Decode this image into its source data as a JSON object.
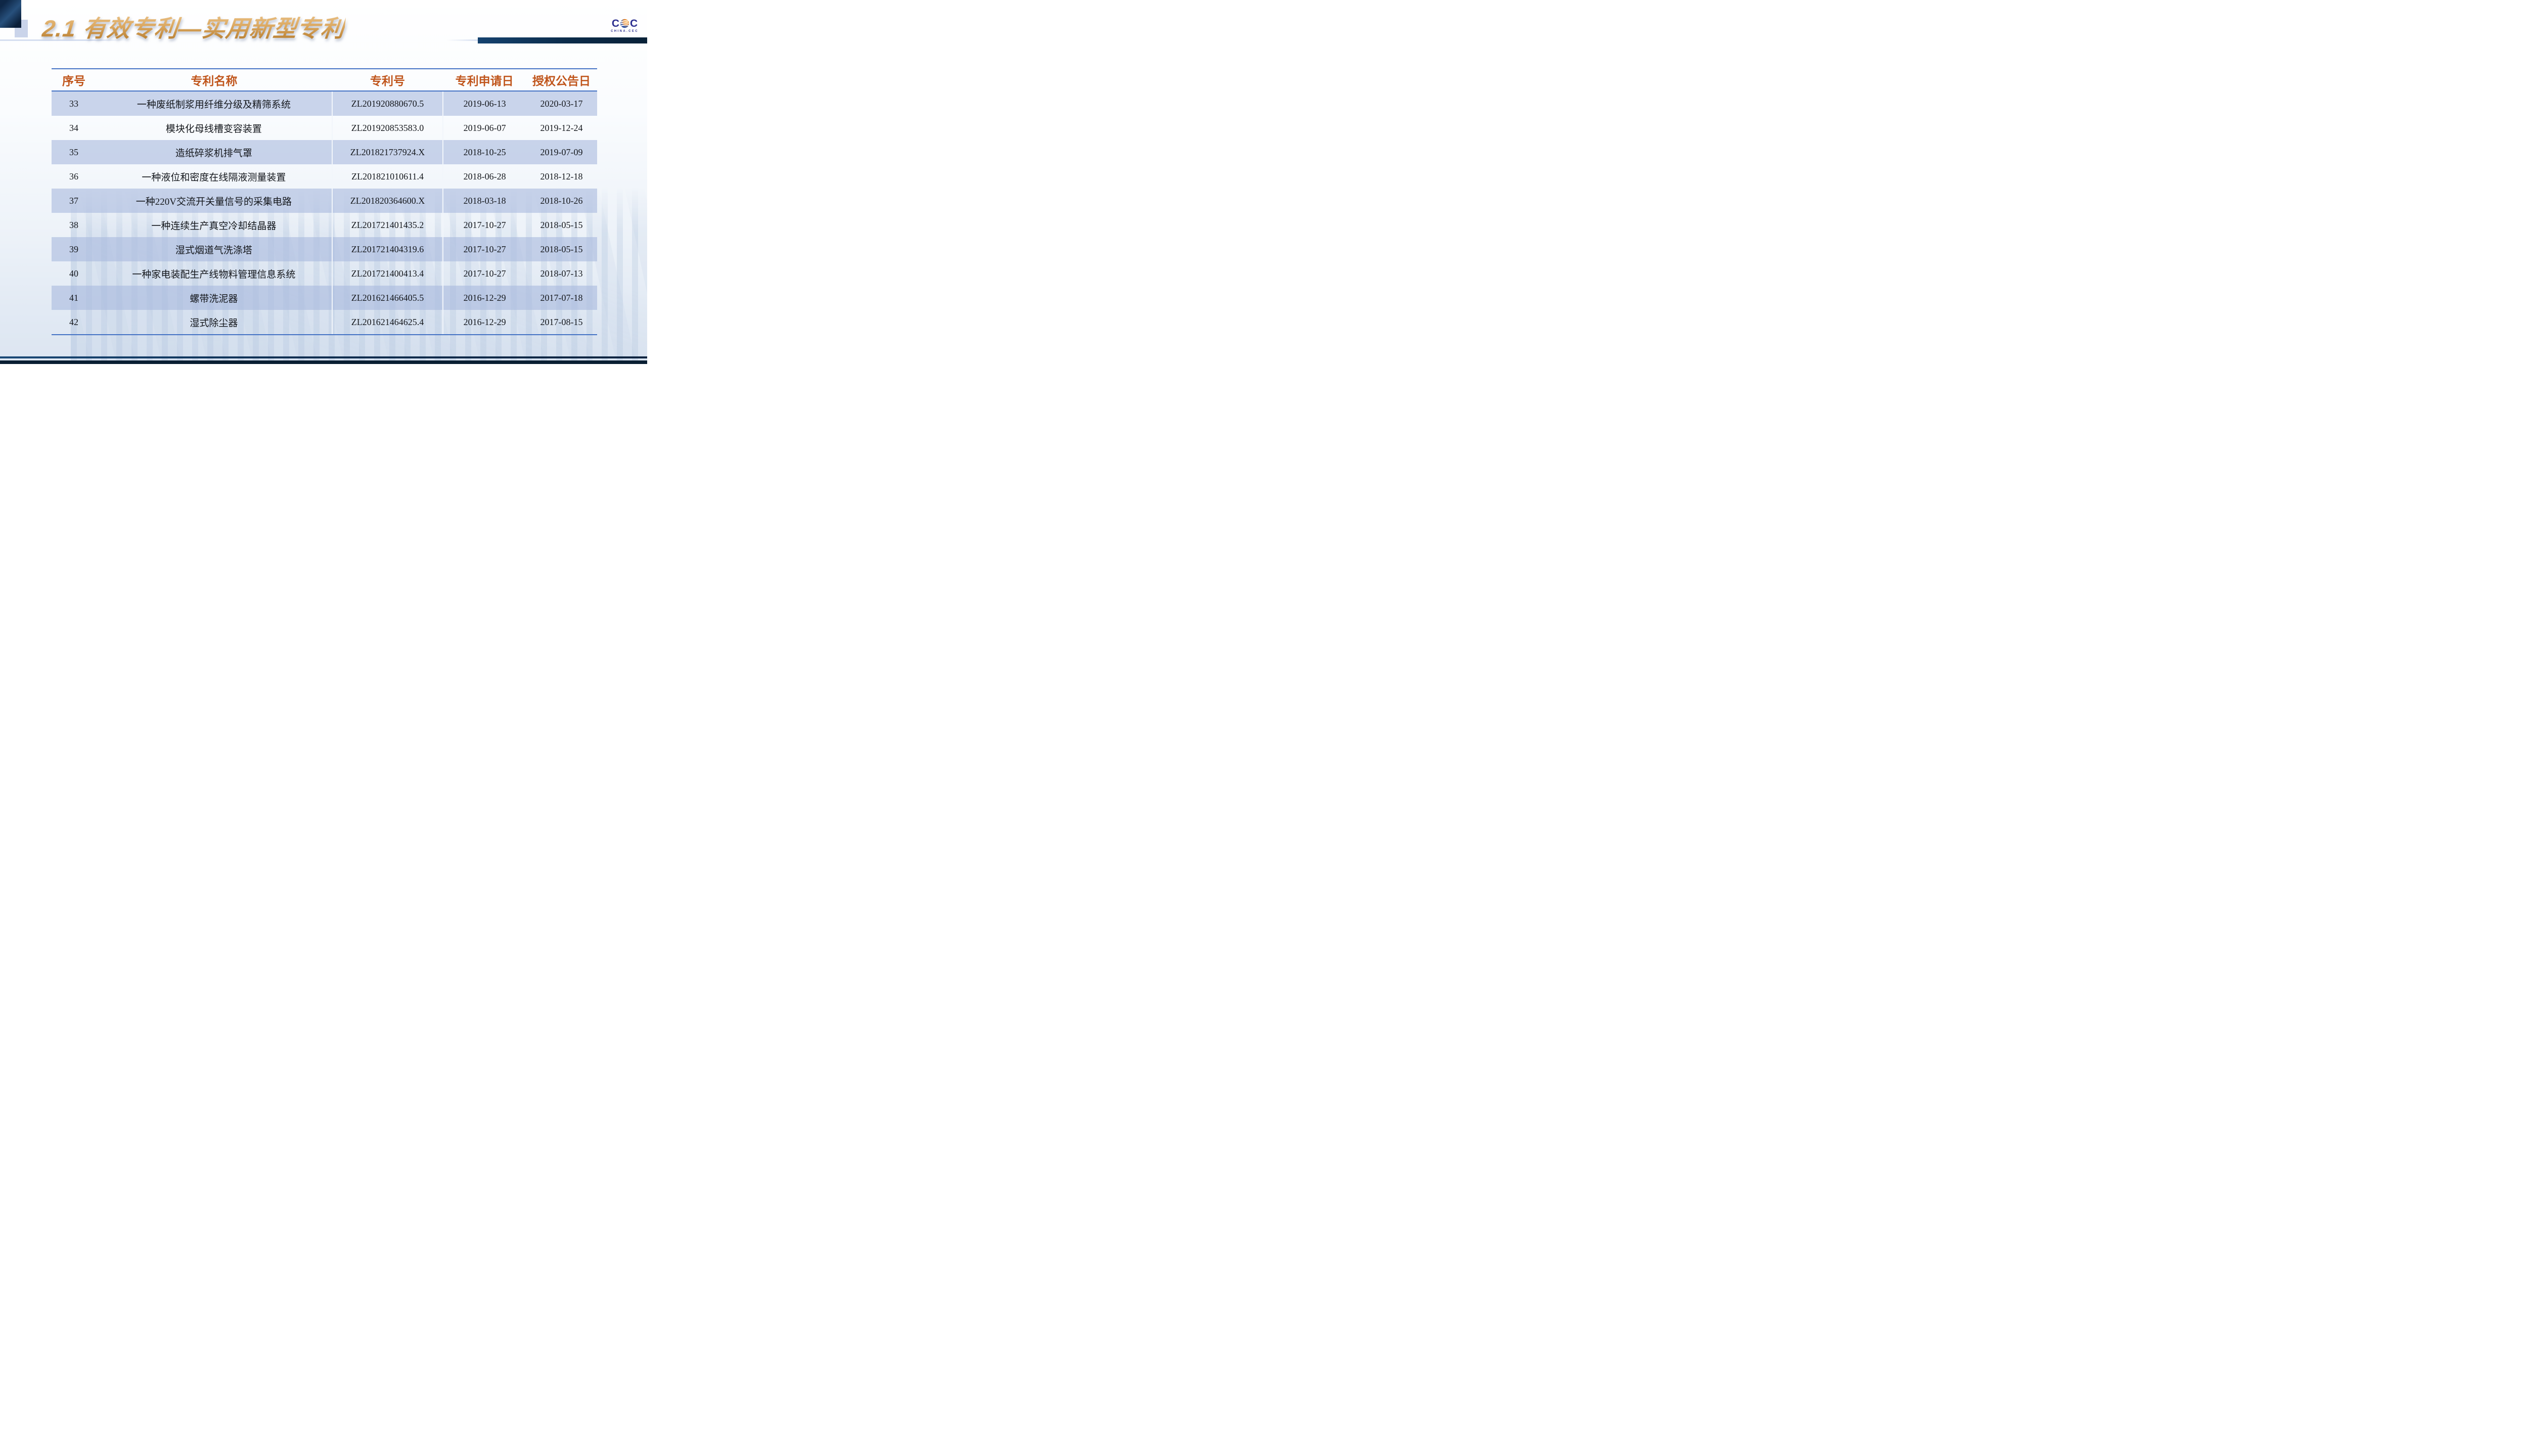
{
  "slide": {
    "title": "2.1 有效专利—实用新型专利",
    "logo": {
      "c_left": "C",
      "c_right": "C",
      "subtext": "CHINA.CEC"
    },
    "colors": {
      "accent_orange": "#C0551B",
      "title_gold": "#C79048",
      "table_border_blue": "#4472C4",
      "row_stripe": "#CBD5EA",
      "footer_navy": "#0A1F33",
      "logo_navy": "#2B2E8F",
      "logo_globe_orange": "#E87F1F"
    },
    "table": {
      "headers": [
        "序号",
        "专利名称",
        "专利号",
        "专利申请日",
        "授权公告日"
      ],
      "rows": [
        {
          "no": "33",
          "name": "一种废纸制浆用纤维分级及精筛系统",
          "patent_no": "ZL201920880670.5",
          "applied": "2019-06-13",
          "granted": "2020-03-17"
        },
        {
          "no": "34",
          "name": "模块化母线槽变容装置",
          "patent_no": "ZL201920853583.0",
          "applied": "2019-06-07",
          "granted": "2019-12-24"
        },
        {
          "no": "35",
          "name": "造纸碎浆机排气罩",
          "patent_no": "ZL201821737924.X",
          "applied": "2018-10-25",
          "granted": "2019-07-09"
        },
        {
          "no": "36",
          "name": "一种液位和密度在线隔液测量装置",
          "patent_no": "ZL201821010611.4",
          "applied": "2018-06-28",
          "granted": "2018-12-18"
        },
        {
          "no": "37",
          "name": "一种220V交流开关量信号的采集电路",
          "patent_no": "ZL201820364600.X",
          "applied": "2018-03-18",
          "granted": "2018-10-26"
        },
        {
          "no": "38",
          "name": "一种连续生产真空冷却结晶器",
          "patent_no": "ZL201721401435.2",
          "applied": "2017-10-27",
          "granted": "2018-05-15"
        },
        {
          "no": "39",
          "name": "湿式烟道气洗涤塔",
          "patent_no": "ZL201721404319.6",
          "applied": "2017-10-27",
          "granted": "2018-05-15"
        },
        {
          "no": "40",
          "name": "一种家电装配生产线物料管理信息系统",
          "patent_no": "ZL201721400413.4",
          "applied": "2017-10-27",
          "granted": "2018-07-13"
        },
        {
          "no": "41",
          "name": "螺带洗泥器",
          "patent_no": "ZL201621466405.5",
          "applied": "2016-12-29",
          "granted": "2017-07-18"
        },
        {
          "no": "42",
          "name": "湿式除尘器",
          "patent_no": "ZL201621464625.4",
          "applied": "2016-12-29",
          "granted": "2017-08-15"
        }
      ]
    }
  }
}
